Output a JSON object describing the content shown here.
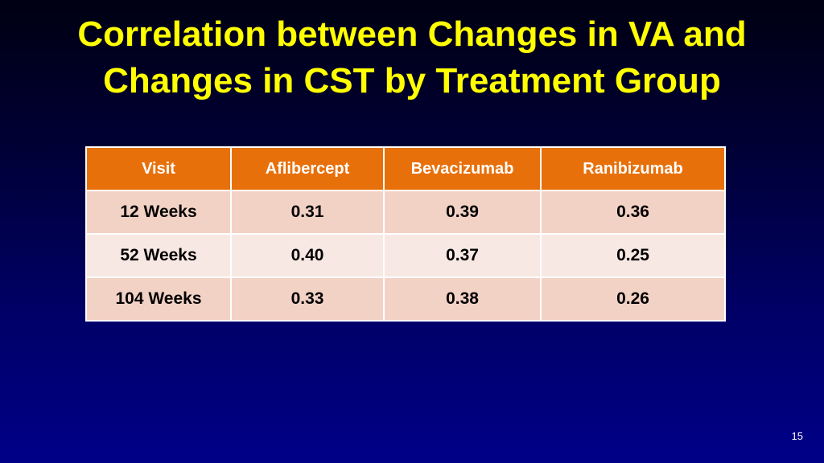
{
  "title": {
    "line1": "Correlation between Changes in VA and",
    "line2": "Changes in CST by Treatment Group"
  },
  "table": {
    "headers": [
      "Visit",
      "Aflibercept",
      "Bevacizumab",
      "Ranibizumab"
    ],
    "rows": [
      [
        "12 Weeks",
        "0.31",
        "0.39",
        "0.36"
      ],
      [
        "52 Weeks",
        "0.40",
        "0.37",
        "0.25"
      ],
      [
        "104 Weeks",
        "0.33",
        "0.38",
        "0.26"
      ]
    ]
  },
  "page_number": "15",
  "colors": {
    "title": "#ffff00",
    "header_bg": "#e8700a",
    "row_odd_bg": "#f3d2c6",
    "row_even_bg": "#f8e8e3",
    "background_top": "#000012",
    "background_bottom": "#000088"
  }
}
